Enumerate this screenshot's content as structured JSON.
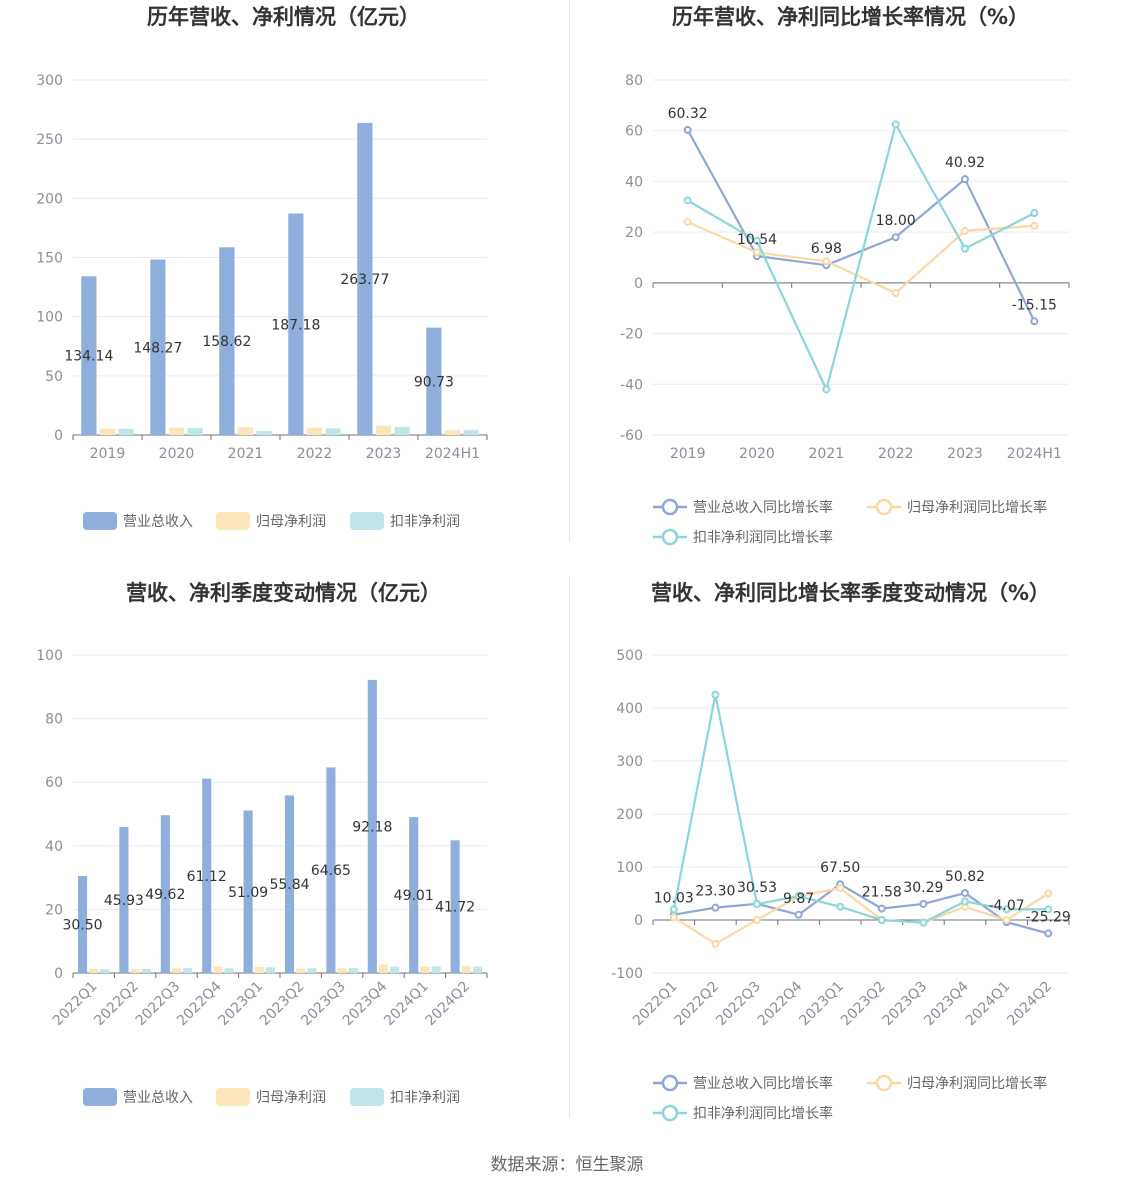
{
  "source_label": "数据来源：恒生聚源",
  "colors": {
    "revenue": "#8eaedb",
    "net_profit": "#fde5ba",
    "deducted_profit": "#bfe7ea",
    "revenue_line": "#8ea7d6",
    "net_profit_line": "#fbd8a3",
    "deducted_line": "#8ad6d9",
    "grid": "#e8eaf0",
    "axis": "#6e7079"
  },
  "chart_data": [
    {
      "type": "bar",
      "title": "历年营收、净利情况（亿元）",
      "categories": [
        "2019",
        "2020",
        "2021",
        "2022",
        "2023",
        "2024H1"
      ],
      "ylim": [
        0,
        300
      ],
      "yticks": [
        0,
        50,
        100,
        150,
        200,
        250,
        300
      ],
      "grid": true,
      "legend_position": "bottom",
      "series": [
        {
          "name": "营业总收入",
          "values": [
            134.14,
            148.27,
            158.62,
            187.18,
            263.77,
            90.73
          ],
          "labels": [
            "134.14",
            "148.27",
            "158.62",
            "187.18",
            "263.77",
            "90.73"
          ]
        },
        {
          "name": "归母净利润",
          "values": [
            5.5,
            6.2,
            6.6,
            6.2,
            7.8,
            4.1
          ]
        },
        {
          "name": "扣非净利润",
          "values": [
            5.2,
            6.0,
            3.4,
            5.6,
            6.8,
            4.3
          ]
        }
      ]
    },
    {
      "type": "line",
      "title": "历年营收、净利同比增长率情况（%）",
      "categories": [
        "2019",
        "2020",
        "2021",
        "2022",
        "2023",
        "2024H1"
      ],
      "ylim": [
        -60,
        80
      ],
      "yticks": [
        -60,
        -40,
        -20,
        0,
        20,
        40,
        60,
        80
      ],
      "grid": true,
      "legend_position": "bottom",
      "series": [
        {
          "name": "营业总收入同比增长率",
          "values": [
            60.32,
            10.54,
            6.98,
            18.0,
            40.92,
            -15.15
          ],
          "labels": [
            "60.32",
            "10.54",
            "6.98",
            "18.00",
            "40.92",
            "-15.15"
          ]
        },
        {
          "name": "归母净利润同比增长率",
          "values": [
            24.0,
            12.0,
            8.5,
            -4.0,
            20.5,
            22.5
          ]
        },
        {
          "name": "扣非净利润同比增长率",
          "values": [
            32.5,
            16.5,
            -42.0,
            62.5,
            13.5,
            27.5
          ]
        }
      ]
    },
    {
      "type": "bar",
      "title": "营收、净利季度变动情况（亿元）",
      "categories": [
        "2022Q1",
        "2022Q2",
        "2022Q3",
        "2022Q4",
        "2023Q1",
        "2023Q2",
        "2023Q3",
        "2023Q4",
        "2024Q1",
        "2024Q2"
      ],
      "ylim": [
        0,
        100
      ],
      "yticks": [
        0,
        20,
        40,
        60,
        80,
        100
      ],
      "grid": true,
      "legend_position": "bottom",
      "series": [
        {
          "name": "营业总收入",
          "values": [
            30.5,
            45.93,
            49.62,
            61.12,
            51.09,
            55.84,
            64.65,
            92.18,
            49.01,
            41.72
          ],
          "labels": [
            "30.50",
            "45.93",
            "49.62",
            "61.12",
            "51.09",
            "55.84",
            "64.65",
            "92.18",
            "49.01",
            "41.72"
          ]
        },
        {
          "name": "归母净利润",
          "values": [
            1.3,
            1.2,
            1.5,
            2.0,
            1.9,
            1.4,
            1.5,
            2.7,
            2.0,
            2.1
          ]
        },
        {
          "name": "扣非净利润",
          "values": [
            1.2,
            1.3,
            1.6,
            1.5,
            1.8,
            1.5,
            1.6,
            2.0,
            2.1,
            2.0
          ]
        }
      ]
    },
    {
      "type": "line",
      "title": "营收、净利同比增长率季度变动情况（%）",
      "categories": [
        "2022Q1",
        "2022Q2",
        "2022Q3",
        "2022Q4",
        "2023Q1",
        "2023Q2",
        "2023Q3",
        "2023Q4",
        "2024Q1",
        "2024Q2"
      ],
      "ylim": [
        -100,
        500
      ],
      "yticks": [
        -100,
        0,
        100,
        200,
        300,
        400,
        500
      ],
      "grid": true,
      "legend_position": "bottom",
      "series": [
        {
          "name": "营业总收入同比增长率",
          "values": [
            10.03,
            23.3,
            30.53,
            9.87,
            67.5,
            21.58,
            30.29,
            50.82,
            -4.07,
            -25.29
          ],
          "labels": [
            "10.03",
            "23.30",
            "30.53",
            "9.87",
            "67.50",
            "21.58",
            "30.29",
            "50.82",
            "-4.07",
            "-25.29"
          ]
        },
        {
          "name": "归母净利润同比增长率",
          "values": [
            5,
            -45,
            0,
            45,
            60,
            0,
            -5,
            25,
            0,
            50
          ]
        },
        {
          "name": "扣非净利润同比增长率",
          "values": [
            20,
            425,
            30,
            45,
            25,
            0,
            -5,
            35,
            20,
            20
          ]
        }
      ]
    }
  ]
}
